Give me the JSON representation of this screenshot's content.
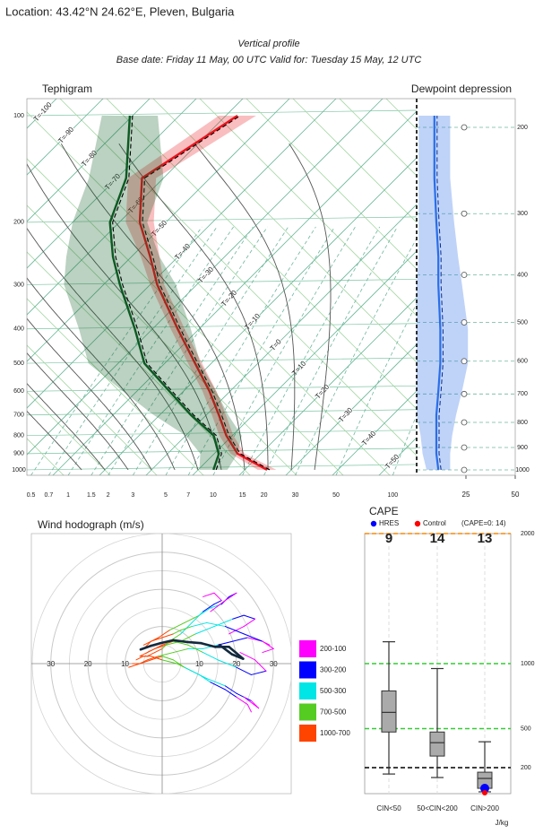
{
  "location": "Location: 43.42°N 24.62°E, Pleven, Bulgaria",
  "header": {
    "title": "Vertical profile",
    "subtitle": "Base date: Friday 11 May, 00 UTC Valid for: Tuesday 15 May, 12 UTC"
  },
  "chart_data": [
    {
      "type": "tephigram",
      "title": "Tephigram",
      "pressure": [
        1000,
        900,
        800,
        700,
        600,
        500,
        400,
        300,
        250,
        200,
        150,
        100
      ],
      "series": [
        {
          "color": "#e8141c",
          "values": [
            24.8,
            15,
            8.7,
            2.7,
            -4.4,
            -13.5,
            -24.6,
            -38.5,
            -46,
            -55.6,
            -64.6,
            -57.5
          ],
          "spread": [
            2,
            1.5,
            1.5,
            1.5,
            1.5,
            1.5,
            1.5,
            1.5,
            2,
            3,
            3,
            4
          ]
        },
        {
          "color": "#0c5a22",
          "values": [
            13.3,
            11,
            6,
            -3.3,
            -13,
            -24.4,
            -33.8,
            -46.5,
            -54,
            -62,
            -68,
            -80.6
          ],
          "spread": [
            3,
            4,
            6,
            8,
            10,
            12,
            12,
            12,
            10,
            8,
            8,
            6
          ]
        }
      ],
      "ylim": [
        1036,
        89.5
      ],
      "yticks": [
        100,
        200,
        300,
        400,
        500,
        600,
        700,
        800,
        900,
        1000
      ],
      "log": true,
      "isotherms": [
        {
          "value": -110,
          "label": "T=-110"
        },
        {
          "value": -100,
          "label": "T=-100"
        },
        {
          "value": -90,
          "label": "T=-90"
        },
        {
          "value": -80,
          "label": "T=-80"
        },
        {
          "value": -70,
          "label": "T=-70"
        },
        {
          "value": -60,
          "label": "T=-60"
        },
        {
          "value": -50,
          "label": "T=-50"
        },
        {
          "value": -40,
          "label": "T=-40"
        },
        {
          "value": -30,
          "label": "T=-30"
        },
        {
          "value": -20,
          "label": "T=-20"
        },
        {
          "value": -10,
          "label": "T=-10"
        },
        {
          "value": 0,
          "label": "T=0"
        },
        {
          "value": 10,
          "label": "T=10"
        },
        {
          "value": 20,
          "label": "T=20"
        },
        {
          "value": 30,
          "label": "T=30"
        },
        {
          "value": 40,
          "label": "T=40"
        },
        {
          "value": 50,
          "label": "T=50"
        }
      ],
      "dry_adiabats": [
        -30,
        -20,
        -10,
        0,
        10,
        20,
        30,
        40,
        50,
        60,
        70,
        80,
        90,
        100,
        110,
        120,
        130
      ],
      "moist_adiabats": [
        -15,
        -10,
        -5,
        0,
        5,
        10,
        15,
        20,
        25,
        30,
        35
      ],
      "mixing_ratios": [
        0.5,
        0.7,
        1,
        1.5,
        2,
        3,
        5,
        7,
        10,
        15,
        20,
        30,
        50,
        100
      ],
      "depression": {
        "title": "Dewpoint depression",
        "color": "#2a6ee8",
        "values": [
          11,
          10,
          10,
          10,
          11,
          12,
          12,
          11,
          11,
          10,
          9,
          9
        ],
        "spread": [
          6,
          7,
          8,
          10,
          12,
          14,
          14,
          12,
          10,
          9,
          8,
          8
        ],
        "xlim": [
          0,
          50
        ],
        "xticks": [
          25,
          50
        ],
        "y2lim": [
          1025.6,
          174.8
        ],
        "y2ticks": [
          200,
          300,
          400,
          500,
          600,
          700,
          800,
          900,
          1000
        ]
      }
    },
    {
      "type": "hodograph",
      "title": "Wind hodograph (m/s)",
      "rlim": [
        0,
        35
      ],
      "rticks": [
        10,
        20,
        30
      ],
      "minor_rticks": [
        5,
        15,
        25,
        35
      ],
      "levels": [
        1000,
        900,
        800,
        700,
        600,
        500,
        400,
        300,
        250,
        200,
        150,
        100
      ],
      "layers": [
        {
          "name": "200-100",
          "color": "#ff00ff",
          "bottom": 200,
          "top": 100
        },
        {
          "name": "300-200",
          "color": "#0000ff",
          "bottom": 300,
          "top": 200
        },
        {
          "name": "500-300",
          "color": "#00e5e5",
          "bottom": 500,
          "top": 300
        },
        {
          "name": "700-500",
          "color": "#55cc22",
          "bottom": 700,
          "top": 500
        },
        {
          "name": "1000-700",
          "color": "#ff4400",
          "bottom": 1000,
          "top": 700
        }
      ],
      "members": [
        {
          "u": [
            -6,
            -4,
            -2,
            1,
            5,
            9,
            14,
            19,
            22,
            25,
            22,
            18
          ],
          "v": [
            2,
            3,
            4,
            5,
            6,
            8,
            10,
            12,
            13,
            12,
            10,
            8
          ]
        },
        {
          "u": [
            -7,
            -5,
            -3,
            0,
            4,
            8,
            12,
            17,
            20,
            24,
            26,
            22
          ],
          "v": [
            1,
            2,
            2,
            1,
            0,
            -2,
            -4,
            -6,
            -8,
            -10,
            -12,
            -9
          ]
        },
        {
          "u": [
            -5,
            -3,
            -1,
            2,
            6,
            10,
            13,
            16,
            18,
            20,
            17,
            13
          ],
          "v": [
            4,
            6,
            7,
            9,
            11,
            13,
            15,
            16,
            18,
            19,
            17,
            14
          ]
        },
        {
          "u": [
            -8,
            -6,
            -4,
            -1,
            3,
            7,
            11,
            15,
            19,
            23,
            27,
            29
          ],
          "v": [
            0,
            0,
            1,
            2,
            3,
            4,
            4,
            5,
            6,
            7,
            6,
            5
          ]
        },
        {
          "u": [
            -4,
            -2,
            0,
            3,
            7,
            11,
            15,
            20,
            24,
            28,
            25,
            21
          ],
          "v": [
            3,
            4,
            5,
            6,
            5,
            3,
            1,
            -1,
            -3,
            -2,
            1,
            3
          ]
        },
        {
          "u": [
            -6,
            -4,
            -2,
            0,
            2,
            5,
            8,
            11,
            14,
            16,
            14,
            11
          ],
          "v": [
            2,
            2,
            3,
            4,
            6,
            8,
            11,
            14,
            16,
            17,
            19,
            18
          ]
        },
        {
          "u": [
            -9,
            -6,
            -3,
            0,
            3,
            6,
            10,
            13,
            17,
            20,
            23,
            24
          ],
          "v": [
            -1,
            0,
            1,
            2,
            1,
            -1,
            -3,
            -5,
            -7,
            -9,
            -11,
            -13
          ]
        },
        {
          "u": [
            -5,
            -3,
            0,
            3,
            5,
            8,
            12,
            17,
            22,
            27,
            30,
            27
          ],
          "v": [
            5,
            6,
            7,
            8,
            9,
            10,
            11,
            10,
            8,
            6,
            4,
            3
          ]
        }
      ],
      "hres": {
        "color": "#13293d",
        "u": [
          -5.8,
          -3,
          -0.5,
          3,
          6.8,
          10.5,
          14.3,
          18,
          19.8,
          21.8,
          18.8,
          15.5
        ],
        "v": [
          3.8,
          4.8,
          5.5,
          6.3,
          5.8,
          5.5,
          4.5,
          4.5,
          3,
          1.3,
          2.5,
          5
        ]
      }
    },
    {
      "type": "box",
      "title": "CAPE",
      "legend": [
        {
          "name": "HRES",
          "color": "#0000ff"
        },
        {
          "name": "Control",
          "color": "#ff0000"
        }
      ],
      "note": "(CAPE=0: 14)",
      "categories": [
        "CIN<50",
        "50<CIN<200",
        "CIN>200"
      ],
      "counts": [
        9,
        14,
        13
      ],
      "min": [
        151,
        124,
        14
      ],
      "q1": [
        474,
        289,
        41
      ],
      "median": [
        625,
        392,
        117
      ],
      "q3": [
        790,
        474,
        165
      ],
      "max": [
        1168,
        962,
        399
      ],
      "hres": [
        null,
        null,
        41
      ],
      "control": [
        null,
        null,
        7
      ],
      "ylim": [
        0,
        2000
      ],
      "yticks": [
        200,
        500,
        1000,
        2000
      ],
      "ytick_colors": [
        "#000000",
        "#33cc33",
        "#33cc33",
        "#ff8800"
      ],
      "ylabel": "J/kg"
    }
  ]
}
